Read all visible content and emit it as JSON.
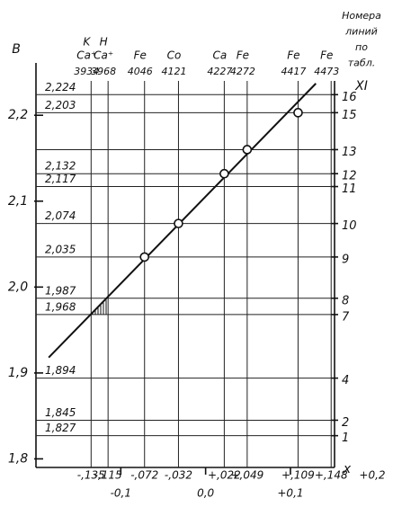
{
  "chart_data": {
    "type": "line",
    "y_axis_label": "B",
    "x_axis_label": "x",
    "right_axis_label": [
      "Номера",
      "линий",
      "по",
      "табл.",
      "XI"
    ],
    "xlim": [
      -0.2,
      0.152
    ],
    "ylim": [
      1.79,
      2.24
    ],
    "yticks": [
      {
        "value": 1.8,
        "label": "1,8"
      },
      {
        "value": 1.9,
        "label": "1,9"
      },
      {
        "value": 2.0,
        "label": "2,0"
      },
      {
        "value": 2.1,
        "label": "2,1"
      },
      {
        "value": 2.2,
        "label": "2,2"
      }
    ],
    "xticks": [
      {
        "value": -0.1,
        "label": "-0,1"
      },
      {
        "value": 0,
        "label": "0,0"
      },
      {
        "value": 0.1,
        "label": "+0,1"
      },
      {
        "value": 0.2,
        "label": "+0,2"
      }
    ],
    "hlines": {
      "values": [
        2.224,
        2.203,
        2.16,
        2.132,
        2.117,
        2.074,
        2.035,
        1.987,
        1.968,
        1.894,
        1.845,
        1.827
      ],
      "labels": [
        "2,224",
        "2,203",
        null,
        "2,132",
        "2,117",
        "2,074",
        "2,035",
        "1,987",
        "1,968",
        "1,894",
        "1,845",
        "1,827"
      ],
      "line_numbers": [
        16,
        15,
        13,
        12,
        11,
        10,
        9,
        8,
        7,
        4,
        2,
        1
      ]
    },
    "vlines": {
      "values": [
        -0.135,
        -0.115,
        -0.072,
        -0.032,
        0.022,
        0.049,
        0.109,
        0.148
      ],
      "labels": [
        "-,135",
        "-,115",
        "-,072",
        "-,032",
        "+,022",
        "+,049",
        "+,109",
        "+,148"
      ],
      "elements": [
        [
          "K",
          "Ca⁺"
        ],
        [
          "H",
          "Ca⁺"
        ],
        [
          "Fe"
        ],
        [
          "Co"
        ],
        [
          "Ca"
        ],
        [
          "Fe"
        ],
        [
          "Fe"
        ],
        [
          "Fe"
        ]
      ],
      "wavelengths": [
        3934,
        3968,
        4046,
        4121,
        4227,
        4272,
        4417,
        4473
      ]
    },
    "series": [
      {
        "x": [
          -0.072,
          -0.032,
          0.022,
          0.049,
          0.109
        ],
        "values": [
          2.035,
          2.074,
          2.132,
          2.16,
          2.203
        ],
        "marker": "circle",
        "color": "#111111"
      },
      {
        "x": [
          -0.185,
          0.13
        ],
        "values": [
          1.918,
          2.237
        ],
        "marker": "none",
        "color": "#111111"
      }
    ]
  }
}
